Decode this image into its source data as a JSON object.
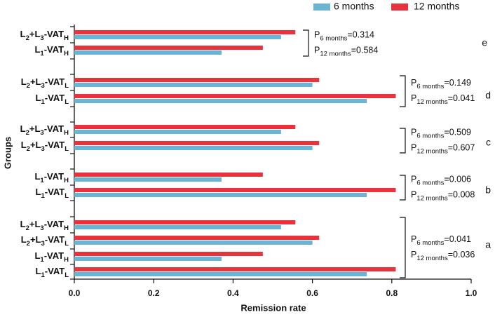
{
  "chart_data": {
    "type": "hbar",
    "x_label": "Remission rate",
    "y_label": "Groups",
    "categories": [
      [
        "L",
        "2",
        "+L",
        "3",
        "-VAT",
        "H"
      ],
      [
        "L",
        "1",
        "-VAT",
        "H"
      ],
      [
        "L",
        "2",
        "+L",
        "3",
        "-VAT",
        "L"
      ],
      [
        "L",
        "1",
        "-VAT",
        "L"
      ],
      [
        "L",
        "2",
        "+L",
        "3",
        "-VAT",
        "H"
      ],
      [
        "L",
        "2",
        "+L",
        "3",
        "-VAT",
        "L"
      ],
      [
        "L",
        "1",
        "-VAT",
        "H"
      ],
      [
        "L",
        "1",
        "-VAT",
        "L"
      ],
      [
        "L",
        "2",
        "+L",
        "3",
        "-VAT",
        "H"
      ],
      [
        "L",
        "2",
        "+L",
        "3",
        "-VAT",
        "L"
      ],
      [
        "L",
        "1",
        "-VAT",
        "H"
      ],
      [
        "L",
        "1",
        "-VAT",
        "L"
      ]
    ],
    "series": [
      {
        "name": "6 months",
        "color": "#6ab4d4",
        "values": [
          0.521,
          0.371,
          0.6,
          0.737,
          0.521,
          0.6,
          0.371,
          0.737,
          0.521,
          0.6,
          0.371,
          0.737
        ]
      },
      {
        "name": "12 months",
        "color": "#e8323c",
        "values": [
          0.557,
          0.475,
          0.617,
          0.81,
          0.557,
          0.617,
          0.475,
          0.81,
          0.557,
          0.617,
          0.475,
          0.81
        ]
      }
    ],
    "xlim": [
      0,
      1
    ],
    "xticks": [
      {
        "value": 0,
        "label": "0.0"
      },
      0.2,
      0.4,
      0.6,
      0.8,
      {
        "value": 1,
        "label": "1.0"
      }
    ],
    "legend": "top-right",
    "annotations": [
      {
        "group": "e",
        "p6": [
          "P",
          "6 months",
          "=0.314"
        ],
        "p12": [
          "P",
          "12 months",
          "=0.584"
        ]
      },
      {
        "group": "d",
        "p6": [
          "P",
          "6 months",
          "=0.149"
        ],
        "p12": [
          "P",
          "12 months",
          "=0.041"
        ]
      },
      {
        "group": "c",
        "p6": [
          "P",
          "6 months",
          "=0.509"
        ],
        "p12": [
          "P",
          "12 months",
          "=0.607"
        ]
      },
      {
        "group": "b",
        "p6": [
          "P",
          "6 months",
          "=0.006"
        ],
        "p12": [
          "P",
          "12 months",
          "=0.008"
        ]
      },
      {
        "group": "a",
        "p6": [
          "P",
          "6 months",
          "=0.041"
        ],
        "p12": [
          "P",
          "12 months",
          "=0.036"
        ]
      }
    ]
  }
}
